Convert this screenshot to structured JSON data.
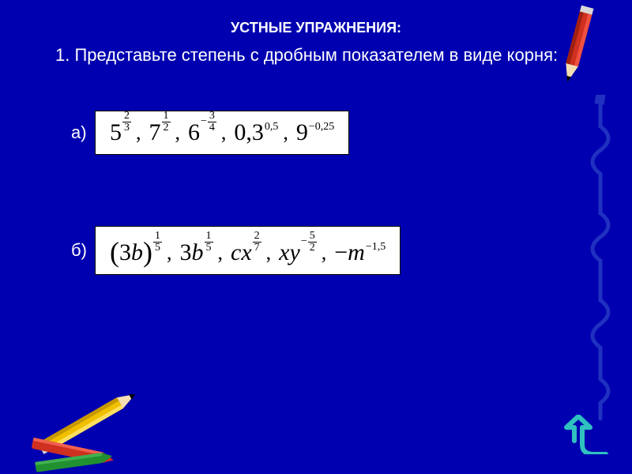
{
  "colors": {
    "background": "#0000b0",
    "text": "#ffffff",
    "box_bg": "#ffffff",
    "box_text": "#000000",
    "arrow": "#30c0c0",
    "pencil_yellow": "#f0c000",
    "pencil_red": "#d03020",
    "pencil_blue": "#2030c0",
    "pencil_green": "#209030"
  },
  "heading": "УСТНЫЕ УПРАЖНЕНИЯ:",
  "task": {
    "number": "1.",
    "text": "Представьте степень с дробным показателем в виде корня:"
  },
  "rows": {
    "a": {
      "label": "а)",
      "terms": [
        {
          "base": "5",
          "exp_num": "2",
          "exp_den": "3"
        },
        {
          "base": "7",
          "exp_num": "1",
          "exp_den": "2"
        },
        {
          "base": "6",
          "exp_neg": true,
          "exp_num": "3",
          "exp_den": "4"
        },
        {
          "base": "0,3",
          "exp_plain": "0,5"
        },
        {
          "base": "9",
          "exp_plain": "−0,25"
        }
      ]
    },
    "b": {
      "label": "б)",
      "terms": [
        {
          "base": "(3b)",
          "paren": true,
          "exp_num": "1",
          "exp_den": "5"
        },
        {
          "base": "3b",
          "exp_num": "1",
          "exp_den": "5"
        },
        {
          "base": "cx",
          "italic": true,
          "exp_num": "2",
          "exp_den": "7"
        },
        {
          "base": "xy",
          "italic": true,
          "exp_neg": true,
          "exp_num": "5",
          "exp_den": "2"
        },
        {
          "base": "−m",
          "italic": true,
          "exp_plain": "−1,5"
        }
      ]
    }
  },
  "typography": {
    "heading_fontsize": 18,
    "body_fontsize": 22,
    "math_base_fontsize": 30,
    "math_exp_fontsize": 14
  }
}
